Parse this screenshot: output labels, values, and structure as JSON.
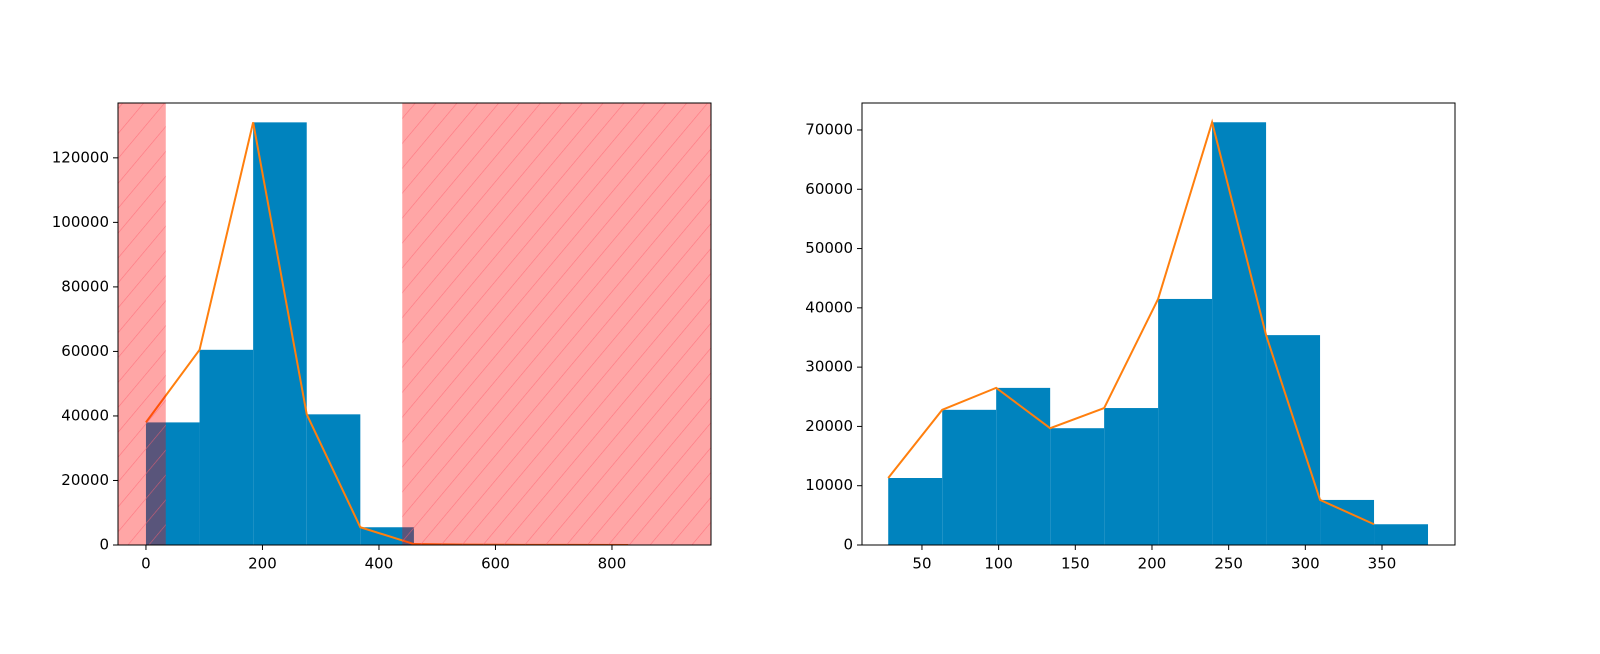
{
  "chart_data": [
    {
      "type": "histogram",
      "bins": [
        0,
        92,
        184,
        276,
        368,
        460,
        552,
        644,
        736,
        828,
        920
      ],
      "values": [
        38000,
        60500,
        131000,
        40500,
        5500,
        300,
        100,
        50,
        20,
        10
      ],
      "color": "#0083be",
      "line_color": "#ff7f0e",
      "spans": [
        [
          -48,
          34
        ],
        [
          440,
          970
        ]
      ],
      "span_color": "#ff0000",
      "span_hatch": true,
      "xlim": [
        -48,
        970
      ],
      "xticks": [
        0,
        200,
        400,
        600,
        800
      ],
      "ylim": [
        0,
        137000
      ],
      "yticks": [
        0,
        20000,
        40000,
        60000,
        80000,
        100000,
        120000
      ]
    },
    {
      "type": "histogram",
      "bins": [
        28,
        63.2,
        98.4,
        133.6,
        168.8,
        204,
        239.2,
        274.4,
        309.6,
        344.8,
        380
      ],
      "values": [
        11300,
        22800,
        26500,
        19700,
        23100,
        41500,
        71300,
        35400,
        7600,
        3500
      ],
      "color": "#0083be",
      "line_color": "#ff7f0e",
      "xlim": [
        10.9,
        397.6
      ],
      "xticks": [
        50,
        100,
        150,
        200,
        250,
        300,
        350
      ],
      "ylim": [
        0,
        74550
      ],
      "yticks": [
        0,
        10000,
        20000,
        30000,
        40000,
        50000,
        60000,
        70000
      ]
    }
  ]
}
